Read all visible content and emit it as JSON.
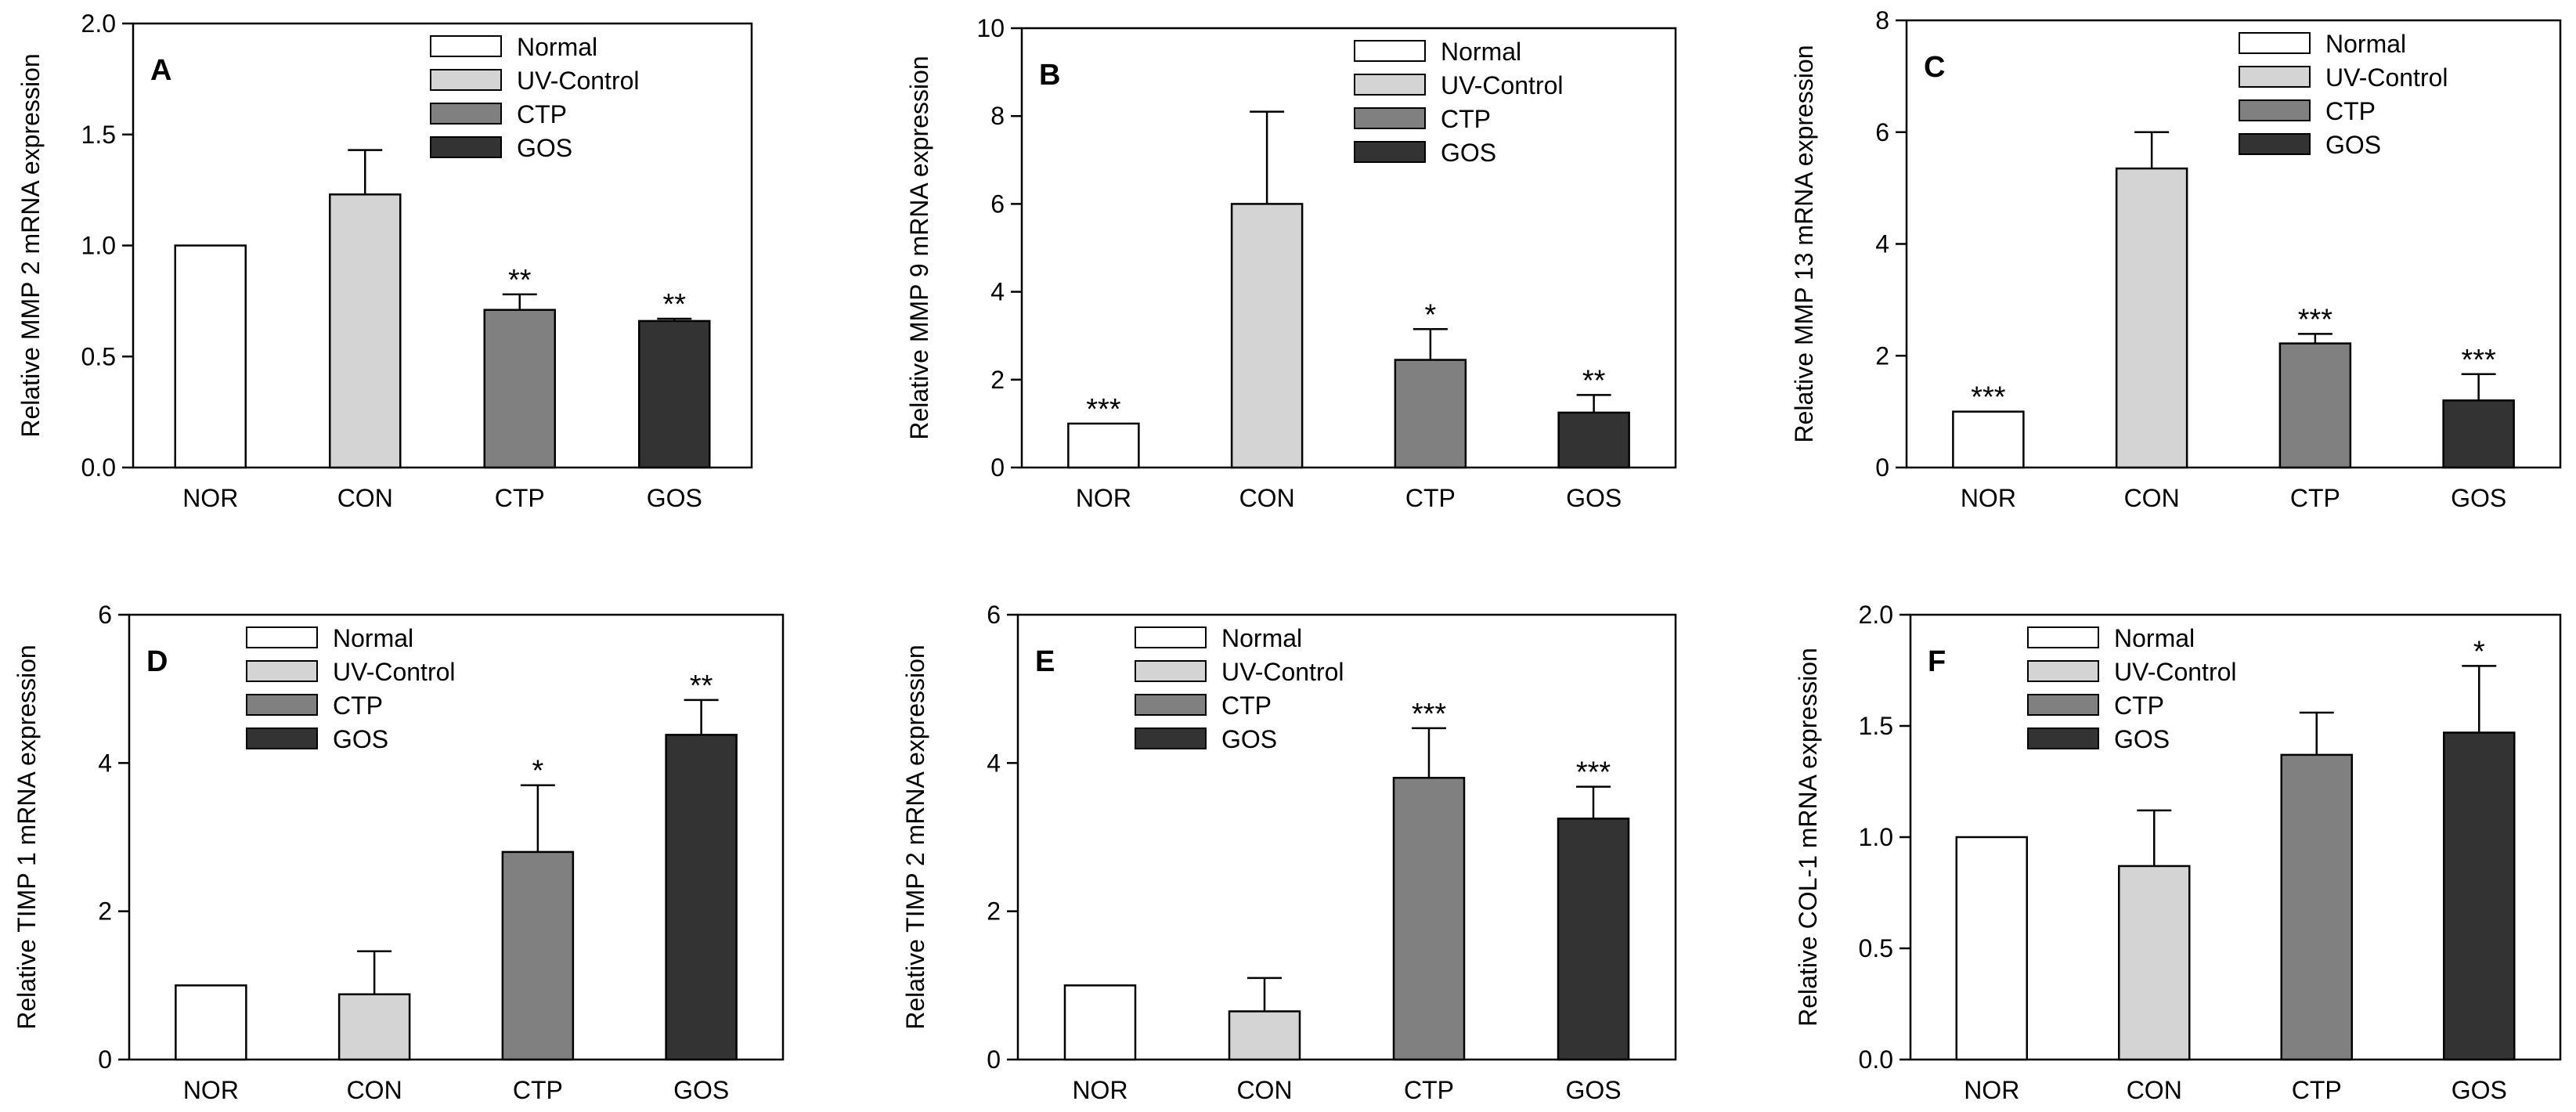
{
  "colors": {
    "normal": "#ffffff",
    "uv_control": "#d4d4d4",
    "ctp": "#808080",
    "gos": "#333333",
    "axis": "#000000"
  },
  "legend_labels": [
    "Normal",
    "UV-Control",
    "CTP",
    "GOS"
  ],
  "chart_data": [
    {
      "type": "bar",
      "panel": "A",
      "title": "",
      "ylabel": "Relative MMP 2 mRNA expression",
      "categories": [
        "NOR",
        "CON",
        "CTP",
        "GOS"
      ],
      "values": [
        1.0,
        1.23,
        0.71,
        0.66
      ],
      "errors": [
        0,
        0.2,
        0.07,
        0.01
      ],
      "significance": [
        "",
        "",
        "**",
        "**"
      ],
      "ylim": [
        0,
        2.0
      ],
      "yticks": [
        0,
        0.5,
        1.0,
        1.5,
        2.0
      ],
      "ytick_labels": [
        "0.0",
        "0.5",
        "1.0",
        "1.5",
        "2.0"
      ],
      "legend_position": "top-right"
    },
    {
      "type": "bar",
      "panel": "B",
      "title": "",
      "ylabel": "Relative MMP 9 mRNA expression",
      "categories": [
        "NOR",
        "CON",
        "CTP",
        "GOS"
      ],
      "values": [
        1.0,
        6.0,
        2.45,
        1.25
      ],
      "errors": [
        0,
        2.1,
        0.7,
        0.4
      ],
      "significance": [
        "***",
        "",
        "*",
        "**"
      ],
      "ylim": [
        0,
        10
      ],
      "yticks": [
        0,
        2,
        4,
        6,
        8,
        10
      ],
      "ytick_labels": [
        "0",
        "2",
        "4",
        "6",
        "8",
        "10"
      ],
      "legend_position": "top-right"
    },
    {
      "type": "bar",
      "panel": "C",
      "title": "",
      "ylabel": "Relative MMP 13 mRNA expression",
      "categories": [
        "NOR",
        "CON",
        "CTP",
        "GOS"
      ],
      "values": [
        1.0,
        5.35,
        2.22,
        1.2
      ],
      "errors": [
        0,
        0.65,
        0.17,
        0.47
      ],
      "significance": [
        "***",
        "",
        "***",
        "***"
      ],
      "ylim": [
        0,
        8
      ],
      "yticks": [
        0,
        2,
        4,
        6,
        8
      ],
      "ytick_labels": [
        "0",
        "2",
        "4",
        "6",
        "8"
      ],
      "legend_position": "top-right"
    },
    {
      "type": "bar",
      "panel": "D",
      "title": "",
      "ylabel": "Relative TIMP 1 mRNA expression",
      "categories": [
        "NOR",
        "CON",
        "CTP",
        "GOS"
      ],
      "values": [
        1.0,
        0.88,
        2.8,
        4.38
      ],
      "errors": [
        0,
        0.58,
        0.9,
        0.47
      ],
      "significance": [
        "",
        "",
        "*",
        "**"
      ],
      "ylim": [
        0,
        6
      ],
      "yticks": [
        0,
        2,
        4,
        6
      ],
      "ytick_labels": [
        "0",
        "2",
        "4",
        "6"
      ],
      "legend_position": "top-left"
    },
    {
      "type": "bar",
      "panel": "E",
      "title": "",
      "ylabel": "Relative TIMP 2 mRNA expression",
      "categories": [
        "NOR",
        "CON",
        "CTP",
        "GOS"
      ],
      "values": [
        1.0,
        0.65,
        3.8,
        3.25
      ],
      "errors": [
        0,
        0.45,
        0.67,
        0.43
      ],
      "significance": [
        "",
        "",
        "***",
        "***"
      ],
      "ylim": [
        0,
        6
      ],
      "yticks": [
        0,
        2,
        4,
        6
      ],
      "ytick_labels": [
        "0",
        "2",
        "4",
        "6"
      ],
      "legend_position": "top-left"
    },
    {
      "type": "bar",
      "panel": "F",
      "title": "",
      "ylabel": "Relative COL-1 mRNA expression",
      "categories": [
        "NOR",
        "CON",
        "CTP",
        "GOS"
      ],
      "values": [
        1.0,
        0.87,
        1.37,
        1.47
      ],
      "errors": [
        0,
        0.25,
        0.19,
        0.3
      ],
      "significance": [
        "",
        "",
        "",
        "*"
      ],
      "ylim": [
        0,
        2.0
      ],
      "yticks": [
        0,
        0.5,
        1.0,
        1.5,
        2.0
      ],
      "ytick_labels": [
        "0.0",
        "0.5",
        "1.0",
        "1.5",
        "2.0"
      ],
      "legend_position": "top-left"
    }
  ]
}
